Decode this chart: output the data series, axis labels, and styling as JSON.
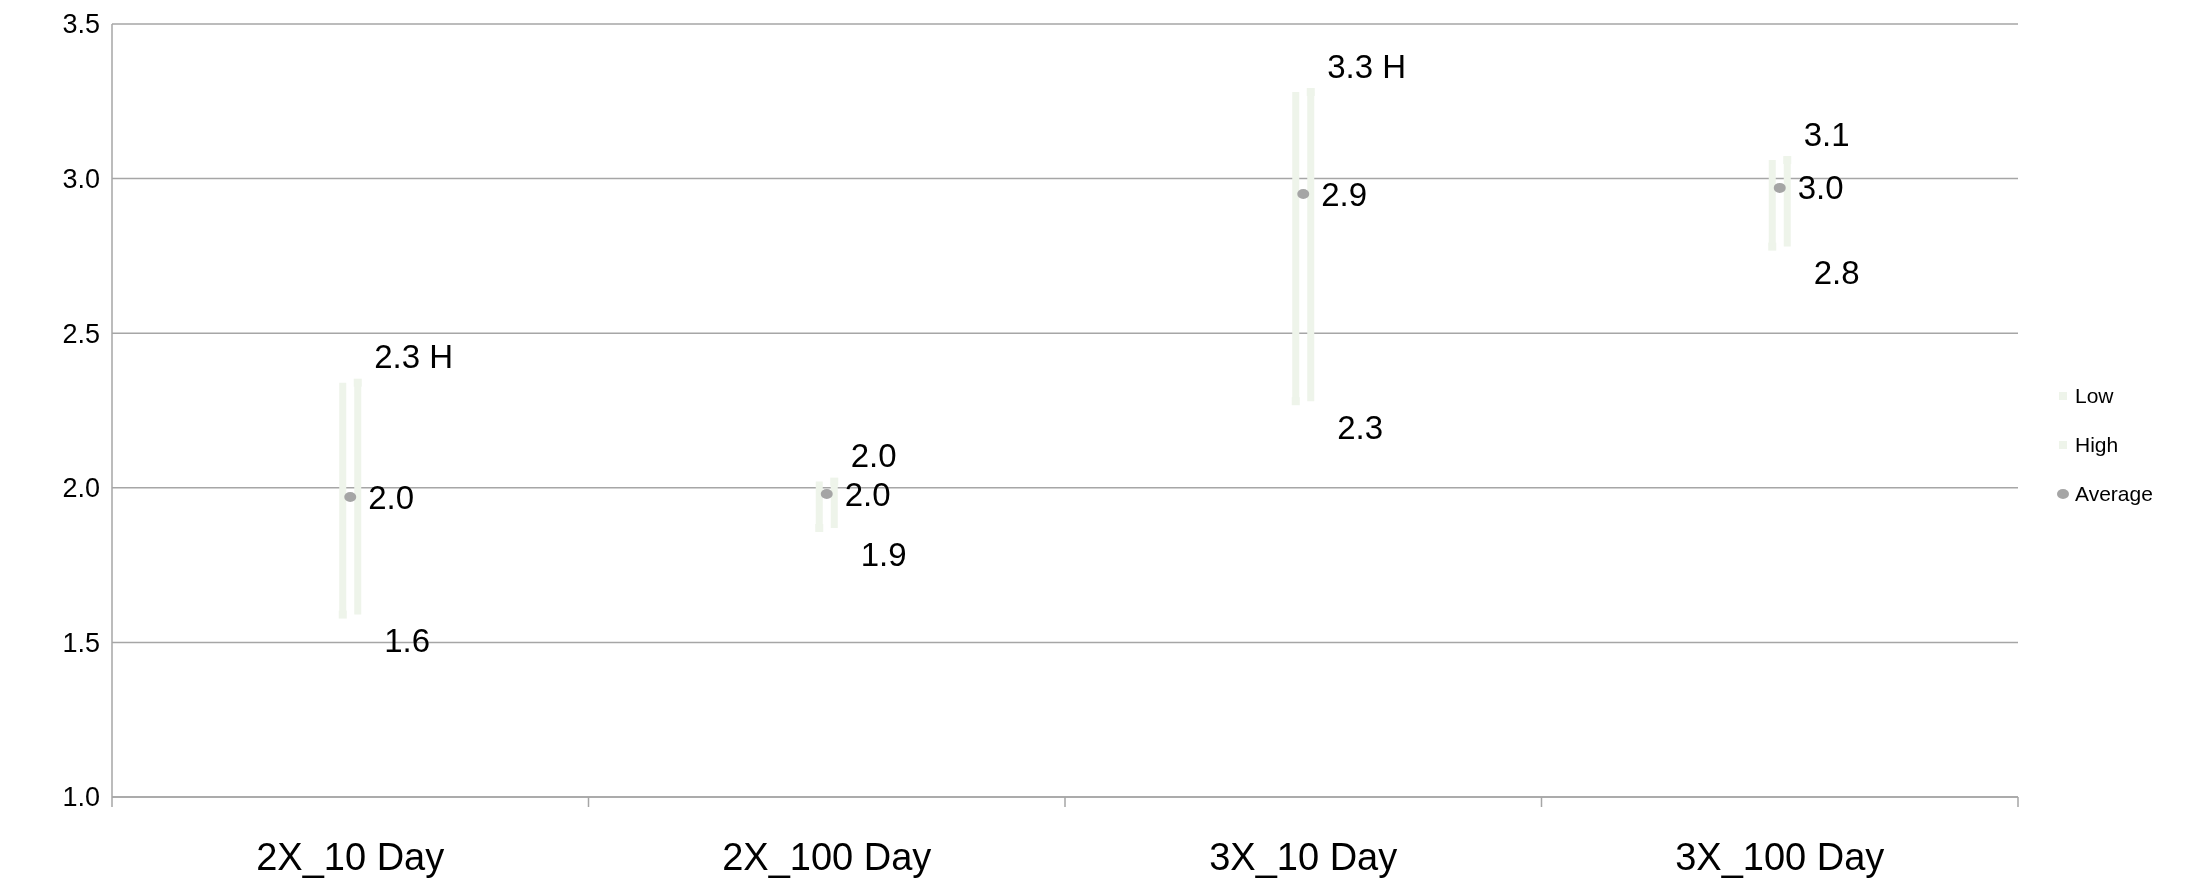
{
  "chart_data": {
    "type": "scatter",
    "categories": [
      "2X_10 Day",
      "2X_100 Day",
      "3X_10 Day",
      "3X_100 Day"
    ],
    "ylim": [
      1,
      3.5
    ],
    "yticks": [
      {
        "value": 1,
        "label": "1.0"
      },
      1.5,
      {
        "value": 2,
        "label": "2.0"
      },
      2.5,
      {
        "value": 3,
        "label": "3.0"
      },
      3.5
    ],
    "grid": "y",
    "legend": "right",
    "series": [
      {
        "name": "Low",
        "color": "#eef4ea",
        "marker": "square",
        "values": [
          1.59,
          1.87,
          2.28,
          2.78
        ],
        "value_labels": [
          "1.6",
          "1.9",
          "2.3",
          "2.8"
        ]
      },
      {
        "name": "High",
        "color": "#eef4ea",
        "marker": "square",
        "values": [
          2.34,
          2.02,
          3.28,
          3.06
        ],
        "value_labels": [
          "2.3 H",
          "2.0",
          "3.3 H",
          "3.1"
        ]
      },
      {
        "name": "Average",
        "color": "#a5a5a5",
        "marker": "circle",
        "values": [
          1.97,
          1.98,
          2.95,
          2.97
        ],
        "value_labels": [
          "2.0",
          "2.0",
          "2.9",
          "3.0"
        ]
      }
    ]
  }
}
